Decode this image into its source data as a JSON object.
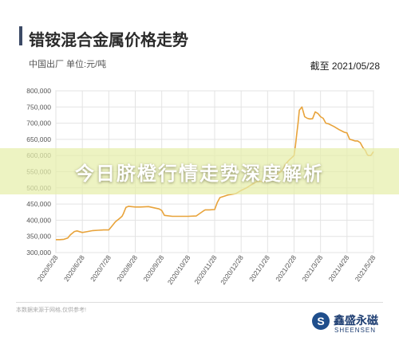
{
  "header": {
    "title": "错铵混合金属价格走势",
    "subtitle": "中国出厂  单位:元/吨",
    "date": "截至 2021/05/28"
  },
  "banner": {
    "text": "今日脐橙行情走势深度解析"
  },
  "footer": {
    "source": "本数据来源于网格,仅供参考!",
    "logo_mark": "S",
    "logo_cn": "鑫盛永磁",
    "logo_en": "SHEENSEN"
  },
  "colors": {
    "line": "#e8a33a",
    "title_bar": "#3c4a66",
    "logo": "#1f4e8c"
  },
  "chart_data": {
    "type": "line",
    "title": "",
    "xlabel": "",
    "ylabel": "",
    "ylim": [
      300000,
      800000
    ],
    "yticks": [
      "300,000",
      "350,000",
      "400,000",
      "450,000",
      "500,000",
      "550,000",
      "600,000",
      "650,000",
      "700,000",
      "750,000",
      "800,000"
    ],
    "xticks": [
      "2020/5/28",
      "2020/6/28",
      "2020/7/28",
      "2020/8/28",
      "2020/9/28",
      "2020/10/28",
      "2020/11/28",
      "2020/12/28",
      "2021/1/28",
      "2021/2/28",
      "2021/3/28",
      "2021/4/28",
      "2021/5/28"
    ],
    "grid": true,
    "series": [
      {
        "x": [
          0,
          0.15,
          0.3,
          0.45,
          0.55,
          0.7,
          0.8,
          1.0,
          1.2,
          1.4,
          1.6,
          1.8,
          2.0,
          2.1,
          2.25,
          2.4,
          2.5,
          2.55,
          2.6,
          2.65,
          2.75,
          2.85,
          3.0,
          3.2,
          3.5,
          3.9,
          4.0,
          4.1,
          4.4,
          4.8,
          5.0,
          5.3,
          5.6,
          5.65,
          5.8,
          6.0,
          6.1,
          6.2,
          6.5,
          6.8,
          7.0,
          7.2,
          7.4,
          7.6,
          7.8,
          8.0,
          8.2,
          8.4,
          8.5,
          8.55,
          8.6,
          8.65,
          8.7,
          8.8,
          9.0,
          9.05,
          9.1,
          9.15,
          9.2,
          9.3,
          9.4,
          9.5,
          9.6,
          9.7,
          9.8,
          9.9,
          10.0,
          10.1,
          10.2,
          10.3,
          10.5,
          10.7,
          10.9,
          11.0,
          11.1,
          11.2,
          11.3,
          11.4,
          11.5,
          11.6,
          11.7,
          11.75,
          11.8,
          11.9,
          12.0
        ],
        "y": [
          340000,
          340000,
          341000,
          345000,
          355000,
          365000,
          367000,
          362000,
          365000,
          368000,
          369000,
          370000,
          370000,
          380000,
          395000,
          405000,
          412000,
          420000,
          430000,
          440000,
          443000,
          442000,
          441000,
          441000,
          442000,
          435000,
          430000,
          415000,
          412000,
          412000,
          412000,
          413000,
          430000,
          432000,
          432000,
          433000,
          455000,
          470000,
          478000,
          482000,
          492000,
          500000,
          510000,
          520000,
          520000,
          520000,
          530000,
          545000,
          550000,
          555000,
          560000,
          570000,
          575000,
          585000,
          600000,
          630000,
          665000,
          700000,
          740000,
          750000,
          720000,
          715000,
          713000,
          714000,
          735000,
          730000,
          720000,
          715000,
          700000,
          698000,
          690000,
          680000,
          672000,
          670000,
          650000,
          648000,
          645000,
          645000,
          640000,
          625000,
          615000,
          605000,
          600000,
          600000,
          612000
        ]
      }
    ]
  }
}
